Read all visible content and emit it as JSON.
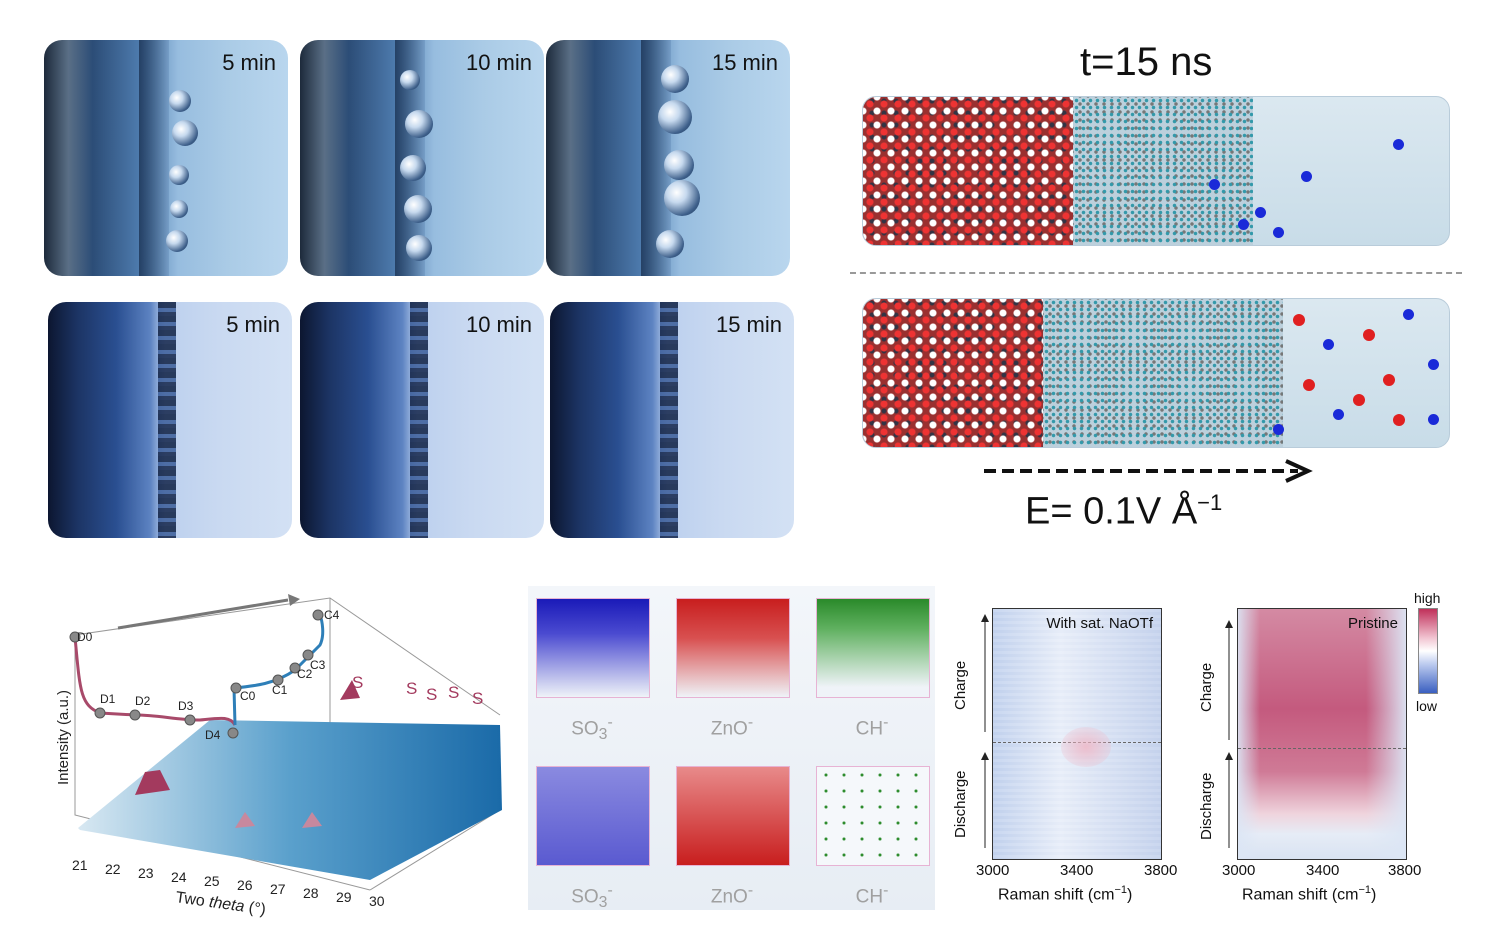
{
  "photos": {
    "top_row_times": [
      "5 min",
      "10 min",
      "15 min"
    ],
    "bottom_row_times": [
      "5 min",
      "10 min",
      "15 min"
    ]
  },
  "md": {
    "title": "t=15 ns",
    "field_label": "E= 0.1V Å",
    "field_exp": "−1"
  },
  "xrd": {
    "ylabel": "Intensity (a.u.)",
    "xlabel_pre": "Two ",
    "xlabel_it": "theta",
    "xlabel_post": " (°)",
    "ticks": [
      "21",
      "22",
      "23",
      "24",
      "25",
      "26",
      "27",
      "28",
      "29",
      "30"
    ],
    "points": [
      "D0",
      "D1",
      "D2",
      "D3",
      "D4",
      "C0",
      "C1",
      "C2",
      "C3",
      "C4"
    ],
    "s_marker": "S",
    "colors": {
      "discharge": "#a84a6a",
      "charge": "#2e7fb8",
      "surface_high": "#1a6aa8",
      "peak": "#a33a5e"
    }
  },
  "tof": {
    "labels_top": [
      "SO",
      "ZnO",
      "CH"
    ],
    "labels_bottom": [
      "SO",
      "ZnO",
      "CH"
    ],
    "sub3": "3",
    "sup_minus": "-",
    "colors": {
      "so3": "#1a1ab8",
      "zno": "#c81e1e",
      "ch": "#2a8a2a"
    }
  },
  "raman": {
    "left_title": "With sat. NaOTf",
    "right_title": "Pristine",
    "charge": "Charge",
    "discharge": "Discharge",
    "xticks": [
      "3000",
      "3400",
      "3800"
    ],
    "xlabel": "Raman shift (cm",
    "xlabel_exp": "−1",
    "xlabel_close": ")",
    "scale_high": "high",
    "scale_low": "low",
    "colors": {
      "high": "#c0305a",
      "low": "#3a5fc0",
      "mid": "#ffffff"
    }
  }
}
